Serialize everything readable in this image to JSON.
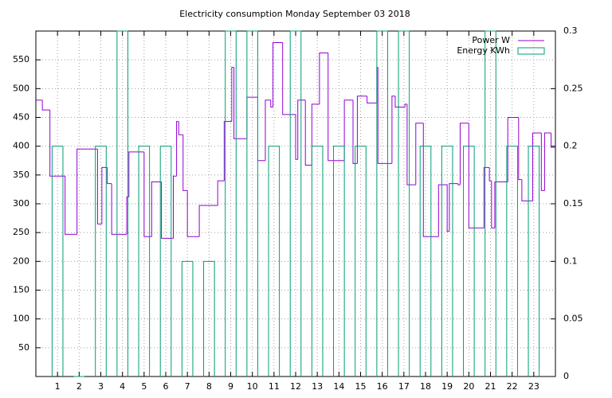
{
  "chart_data": {
    "type": "step",
    "title": "Electricity consumption Monday September 03 2018",
    "xlim": [
      0,
      24
    ],
    "xticks": [
      1,
      2,
      3,
      4,
      5,
      6,
      7,
      8,
      9,
      10,
      11,
      12,
      13,
      14,
      15,
      16,
      17,
      18,
      19,
      20,
      21,
      22,
      23
    ],
    "ylim": [
      0,
      600
    ],
    "yticks": [
      50,
      100,
      150,
      200,
      250,
      300,
      350,
      400,
      450,
      500,
      550
    ],
    "y2lim": [
      0,
      0.3
    ],
    "y2ticks": [
      0,
      0.05,
      0.1,
      0.15,
      0.2,
      0.25,
      0.3
    ],
    "grid": true,
    "legend": "top-right",
    "series": [
      {
        "name": "Power W",
        "color": "#9400d3",
        "x": [
          0,
          0.3,
          0.65,
          1.35,
          1.9,
          2.85,
          3.05,
          3.3,
          3.5,
          4.2,
          4.3,
          5.0,
          5.35,
          5.8,
          6.35,
          6.5,
          6.6,
          6.8,
          7.0,
          7.55,
          8.4,
          8.7,
          9.05,
          9.15,
          9.75,
          10.25,
          10.6,
          10.85,
          10.95,
          11.4,
          12.0,
          12.1,
          12.45,
          12.75,
          13.1,
          13.5,
          14.25,
          14.65,
          14.85,
          15.3,
          15.75,
          15.8,
          16.45,
          16.6,
          17.05,
          17.15,
          17.55,
          17.9,
          18.6,
          19.0,
          19.1,
          19.5,
          19.6,
          20.0,
          20.7,
          20.95,
          21.05,
          21.2,
          21.8,
          22.3,
          22.45,
          22.95,
          23.35,
          23.5,
          23.8,
          24
        ],
        "values": [
          480,
          463,
          348,
          247,
          395,
          265,
          363,
          335,
          247,
          312,
          390,
          243,
          338,
          240,
          348,
          443,
          420,
          323,
          243,
          297,
          340,
          443,
          537,
          413,
          485,
          375,
          480,
          468,
          580,
          455,
          377,
          480,
          367,
          473,
          562,
          375,
          480,
          370,
          487,
          475,
          537,
          370,
          487,
          468,
          473,
          333,
          440,
          243,
          333,
          252,
          335,
          333,
          440,
          258,
          363,
          340,
          258,
          338,
          450,
          342,
          305,
          423,
          323,
          423,
          398,
          398
        ]
      },
      {
        "name": "Energy KWh",
        "color": "#009e73",
        "axis": "y2",
        "x": [
          1,
          2,
          3,
          4,
          5,
          6,
          7,
          8,
          9,
          10,
          11,
          12,
          13,
          14,
          15,
          16,
          17,
          18,
          19,
          20,
          21,
          22,
          23
        ],
        "values": [
          0.2,
          0,
          0.2,
          0.3,
          0.2,
          0.2,
          0.1,
          0.1,
          0.3,
          0.3,
          0.2,
          0.3,
          0.2,
          0.2,
          0.2,
          0.3,
          0.3,
          0.2,
          0.2,
          0.2,
          0.3,
          0.2,
          0.2
        ]
      }
    ]
  }
}
